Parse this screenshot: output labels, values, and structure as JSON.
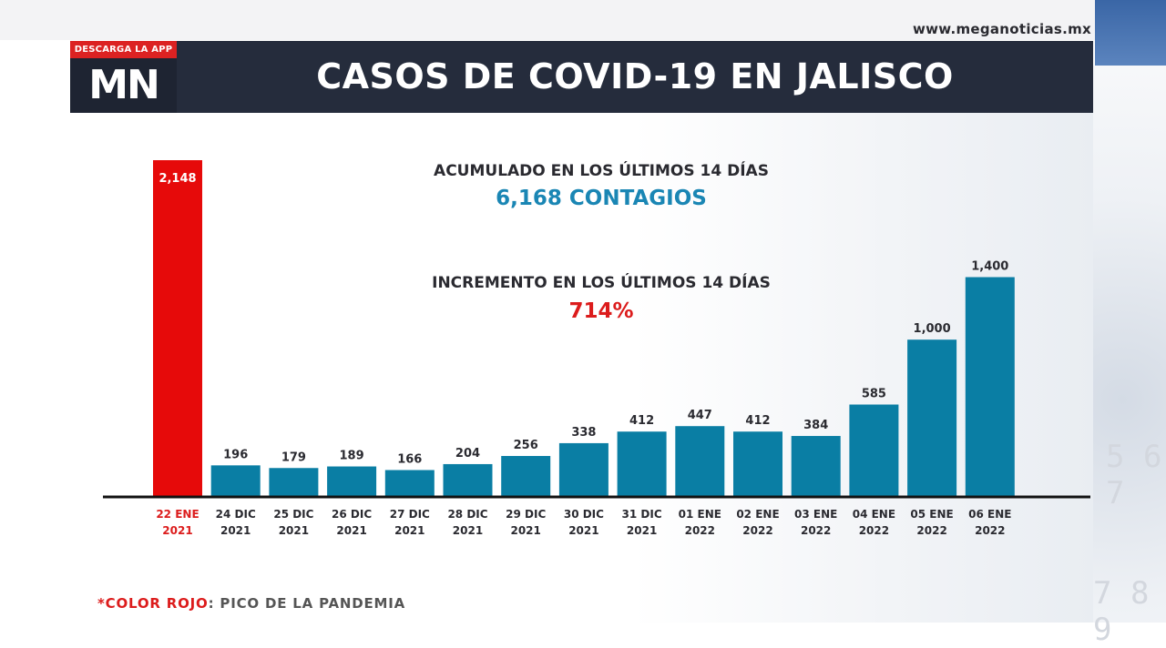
{
  "site": {
    "url": "www.meganoticias.mx"
  },
  "logo": {
    "tag": "DESCARGA LA APP",
    "text": "MN"
  },
  "header": {
    "title": "CASOS DE COVID-19 EN JALISCO"
  },
  "stats": {
    "cumulative_label": "ACUMULADO EN LOS ÚLTIMOS 14 DÍAS",
    "cumulative_value": "6,168 CONTAGIOS",
    "increase_label": "INCREMENTO EN LOS ÚLTIMOS 14 DÍAS",
    "increase_value": "714%"
  },
  "footnote": {
    "highlight": "*COLOR ROJO",
    "rest": ": PICO DE LA PANDEMIA"
  },
  "colors": {
    "peak": "#e60a0a",
    "bar": "#0a7ea4",
    "header": "#252c3c",
    "peak_text": "#dc1c1c",
    "stat_blue": "#1a86b4"
  },
  "chart_data": {
    "type": "bar",
    "categories": [
      [
        "22 ENE",
        "2021"
      ],
      [
        "24 DIC",
        "2021"
      ],
      [
        "25 DIC",
        "2021"
      ],
      [
        "26 DIC",
        "2021"
      ],
      [
        "27 DIC",
        "2021"
      ],
      [
        "28 DIC",
        "2021"
      ],
      [
        "29 DIC",
        "2021"
      ],
      [
        "30 DIC",
        "2021"
      ],
      [
        "31 DIC",
        "2021"
      ],
      [
        "01 ENE",
        "2022"
      ],
      [
        "02 ENE",
        "2022"
      ],
      [
        "03 ENE",
        "2022"
      ],
      [
        "04 ENE",
        "2022"
      ],
      [
        "05 ENE",
        "2022"
      ],
      [
        "06 ENE",
        "2022"
      ]
    ],
    "values": [
      2148,
      196,
      179,
      189,
      166,
      204,
      256,
      338,
      412,
      447,
      412,
      384,
      585,
      1000,
      1400
    ],
    "value_labels": [
      "2,148",
      "196",
      "179",
      "189",
      "166",
      "204",
      "256",
      "338",
      "412",
      "447",
      "412",
      "384",
      "585",
      "1,000",
      "1,400"
    ],
    "highlight_index": 0,
    "title": "CASOS DE COVID-19 EN JALISCO",
    "xlabel": "",
    "ylabel": "",
    "ylim": [
      0,
      2148
    ],
    "grid": false
  }
}
